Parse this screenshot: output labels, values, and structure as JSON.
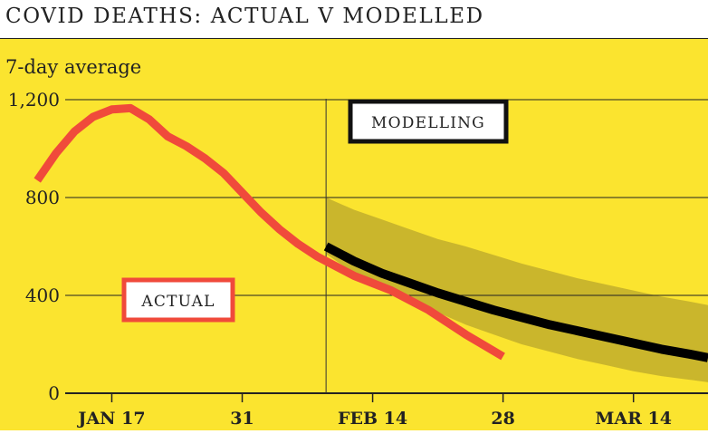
{
  "chart_data": {
    "type": "line",
    "title": "COVID DEATHS: ACTUAL V MODELLED",
    "ylabel": "7-day average",
    "xlabel": "",
    "ylim": [
      0,
      1200
    ],
    "yticks": [
      0,
      400,
      800,
      1200
    ],
    "ytick_labels": [
      "0",
      "400",
      "800",
      "1,200"
    ],
    "xlim": [
      "2021-01-05",
      "2021-03-22"
    ],
    "xticks": [
      {
        "date": "2021-01-17",
        "label": "JAN 17"
      },
      {
        "date": "2021-01-31",
        "label": "31"
      },
      {
        "date": "2021-02-14",
        "label": "FEB 14"
      },
      {
        "date": "2021-02-28",
        "label": "28"
      },
      {
        "date": "2021-03-14",
        "label": "MAR 14"
      }
    ],
    "grid": "horizontal",
    "modelling_start": "2021-02-09",
    "series": [
      {
        "name": "ACTUAL",
        "color": "#f04a3b",
        "x": [
          "2021-01-09",
          "2021-01-11",
          "2021-01-13",
          "2021-01-15",
          "2021-01-17",
          "2021-01-19",
          "2021-01-21",
          "2021-01-23",
          "2021-01-25",
          "2021-01-27",
          "2021-01-29",
          "2021-01-31",
          "2021-02-02",
          "2021-02-04",
          "2021-02-06",
          "2021-02-08",
          "2021-02-10",
          "2021-02-12",
          "2021-02-14",
          "2021-02-16",
          "2021-02-18",
          "2021-02-20",
          "2021-02-22",
          "2021-02-24",
          "2021-02-26",
          "2021-02-28"
        ],
        "y": [
          870,
          980,
          1070,
          1130,
          1160,
          1165,
          1120,
          1050,
          1010,
          960,
          900,
          820,
          740,
          670,
          610,
          560,
          520,
          480,
          450,
          420,
          380,
          340,
          290,
          240,
          195,
          150
        ]
      },
      {
        "name": "MODELLING",
        "color": "#000000",
        "x": [
          "2021-02-09",
          "2021-02-12",
          "2021-02-15",
          "2021-02-18",
          "2021-02-21",
          "2021-02-24",
          "2021-02-27",
          "2021-03-02",
          "2021-03-05",
          "2021-03-08",
          "2021-03-11",
          "2021-03-14",
          "2021-03-17",
          "2021-03-20",
          "2021-03-22"
        ],
        "y": [
          600,
          540,
          490,
          450,
          410,
          375,
          340,
          310,
          280,
          255,
          230,
          205,
          180,
          160,
          145
        ],
        "band_upper": [
          800,
          750,
          710,
          670,
          630,
          600,
          565,
          530,
          500,
          470,
          445,
          420,
          395,
          375,
          360
        ],
        "band_lower": [
          570,
          490,
          430,
          380,
          330,
          280,
          240,
          200,
          170,
          140,
          115,
          90,
          70,
          55,
          45
        ]
      }
    ],
    "annotations": [
      "ACTUAL",
      "MODELLING"
    ],
    "colors": {
      "background": "#fbe42f",
      "band": "#cab62c",
      "actual": "#f04a3b",
      "modelled": "#000000"
    }
  }
}
